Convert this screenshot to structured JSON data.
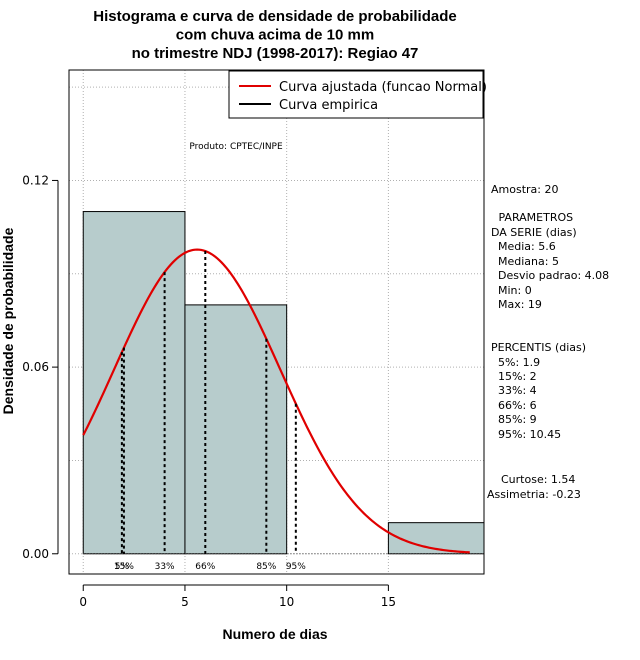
{
  "chart_data": {
    "type": "bar",
    "title_lines": [
      "Histograma e curva de densidade de probabilidade",
      "com chuva acima de 10 mm",
      "no trimestre NDJ (1998-2017): Regiao 47"
    ],
    "xlabel": "Numero de dias",
    "ylabel": "Densidade de probabilidade",
    "xlim": [
      -0.7,
      19.7
    ],
    "ylim": [
      -0.0065,
      0.1555
    ],
    "x_ticks": [
      0,
      5,
      10,
      15
    ],
    "y_ticks": [
      0.0,
      0.06,
      0.12
    ],
    "y_tick_labels": [
      "0.00",
      "0.06",
      "0.12"
    ],
    "grid": true,
    "histogram": {
      "bins": [
        [
          0,
          5
        ],
        [
          5,
          10
        ],
        [
          10,
          15
        ],
        [
          15,
          20
        ]
      ],
      "densities": [
        0.11,
        0.08,
        0.0,
        0.01
      ],
      "fill": "#b7cccc"
    },
    "fitted_curve": {
      "name": "Curva ajustada (funcao Normal)",
      "distribution": "normal",
      "mean": 5.6,
      "sd": 4.08,
      "x_range": [
        0,
        19
      ],
      "color": "#e00000"
    },
    "empirical_curve": {
      "name": "Curva empirica",
      "color": "#000000"
    },
    "percentile_lines": [
      {
        "label": "5%",
        "x": 1.9
      },
      {
        "label": "15%",
        "x": 2
      },
      {
        "label": "33%",
        "x": 4
      },
      {
        "label": "66%",
        "x": 6
      },
      {
        "label": "85%",
        "x": 9
      },
      {
        "label": "95%",
        "x": 10.45
      }
    ],
    "legend_position": "top-right",
    "annotation": "Produto: CPTEC/INPE"
  },
  "side_panel": {
    "lines": [
      "Amostra: 20",
      " PARAMETROS",
      "DA SERIE (dias)",
      "  Media: 5.6",
      "  Mediana: 5",
      "  Desvio padrao: 4.08",
      "  Min: 0",
      "  Max: 19",
      "PERCENTIS (dias)",
      "  5%: 1.9",
      "  15%: 2",
      "  33%: 4",
      "  66%: 6",
      "  85%: 9",
      "  95%: 10.45",
      "Curtose: 1.54",
      "Assimetria: -0.23"
    ]
  }
}
